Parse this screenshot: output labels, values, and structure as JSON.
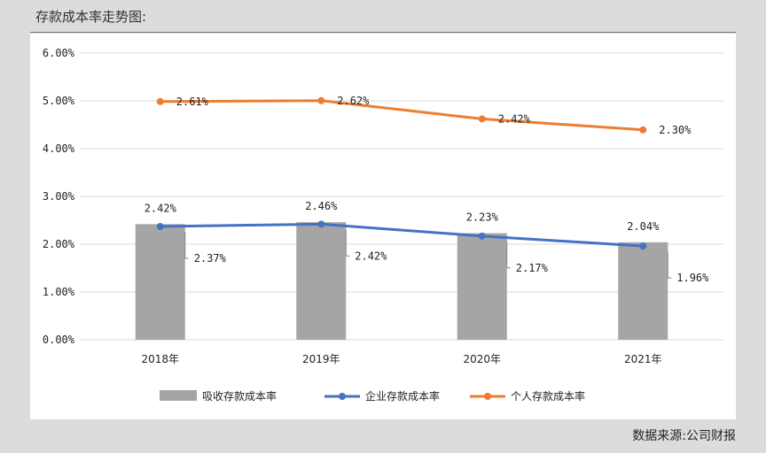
{
  "page": {
    "title": "存款成本率走势图:",
    "source": "数据来源:公司财报"
  },
  "colors": {
    "bar": "#a5a5a5",
    "corporate": "#4472c4",
    "personal": "#ed7d31",
    "grid": "#d9d9d9"
  },
  "chart_data": {
    "type": "bar",
    "categories": [
      "2018年",
      "2019年",
      "2020年",
      "2021年"
    ],
    "ylim": [
      0,
      6
    ],
    "yticks": [
      "0.00%",
      "1.00%",
      "2.00%",
      "3.00%",
      "4.00%",
      "5.00%",
      "6.00%"
    ],
    "grid": true,
    "legend": "bottom",
    "series": [
      {
        "name": "吸收存款成本率",
        "kind": "bar",
        "values": [
          2.42,
          2.46,
          2.23,
          2.04
        ],
        "labels": [
          "2.42%",
          "2.46%",
          "2.23%",
          "2.04%"
        ]
      },
      {
        "name": "企业存款成本率",
        "kind": "line",
        "values": [
          2.37,
          2.42,
          2.17,
          1.96
        ],
        "labels": [
          "2.37%",
          "2.42%",
          "2.17%",
          "1.96%"
        ]
      },
      {
        "name": "个人存款成本率",
        "kind": "line",
        "values": [
          2.61,
          2.62,
          2.42,
          2.3
        ],
        "labels": [
          "2.61%",
          "2.62%",
          "2.42%",
          "2.30%"
        ]
      }
    ]
  }
}
